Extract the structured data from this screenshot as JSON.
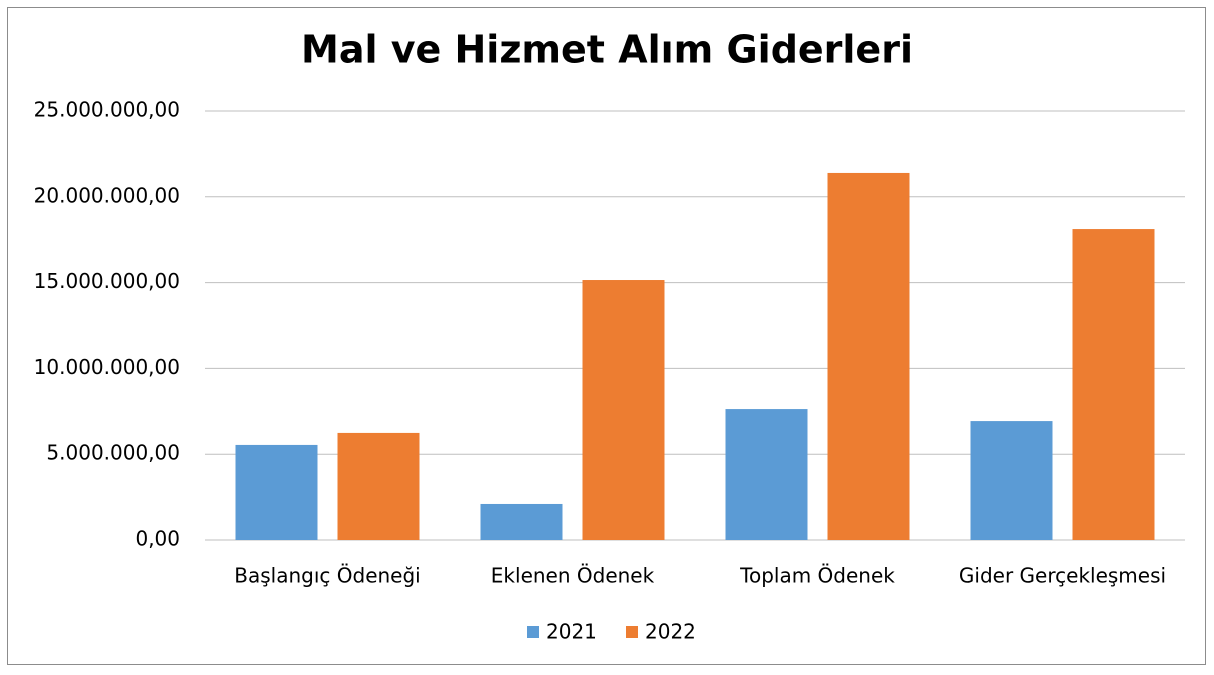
{
  "chart_data": {
    "type": "bar",
    "title": "Mal ve Hizmet Alım Giderleri",
    "categories": [
      "Başlangıç Ödeneği",
      "Eklenen Ödenek",
      "Toplam Ödenek",
      "Gider Gerçekleşmesi"
    ],
    "series": [
      {
        "name": "2021",
        "color": "#5b9bd5",
        "values": [
          5540000,
          2100000,
          7630000,
          6930000
        ]
      },
      {
        "name": "2022",
        "color": "#ed7d31",
        "values": [
          6240000,
          15150000,
          21390000,
          18120000
        ]
      }
    ],
    "ylim": [
      0,
      25000000
    ],
    "yticks": [
      {
        "value": 0,
        "label": "0,00"
      },
      {
        "value": 5000000,
        "label": "5.000.000,00"
      },
      {
        "value": 10000000,
        "label": "10.000.000,00"
      },
      {
        "value": 15000000,
        "label": "15.000.000,00"
      },
      {
        "value": 20000000,
        "label": "20.000.000,00"
      },
      {
        "value": 25000000,
        "label": "25.000.000,00"
      }
    ],
    "grid": true,
    "legend": "bottom"
  }
}
